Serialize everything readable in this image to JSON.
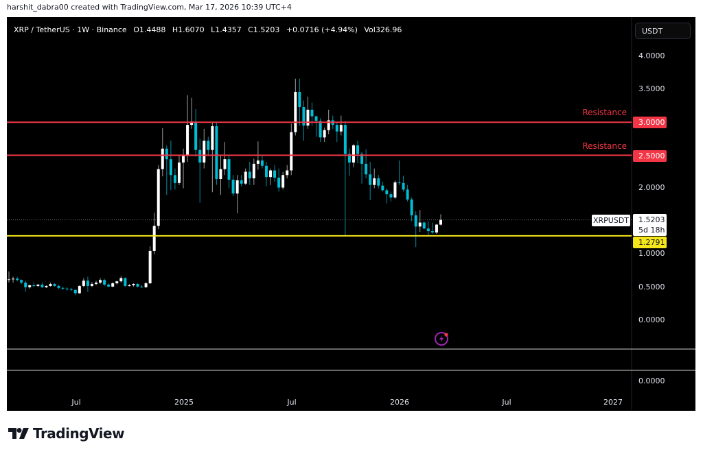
{
  "credit": "harshit_dabra00 created with TradingView.com, Mar 17, 2026 10:39 UTC+4",
  "legend": {
    "symbol": "XRP / TetherUS · 1W · Binance",
    "open": "O1.4488",
    "high": "H1.6070",
    "low": "L1.4357",
    "close": "C1.5203",
    "change": "+0.0716 (+4.94%)",
    "volume": "Vol326.96"
  },
  "currency_button": "USDT",
  "brand": "TradingView",
  "icons": {
    "alert": "lightning-icon",
    "logo": "tradingview-logo"
  },
  "colors": {
    "up": "#ffffff",
    "down": "#00bcd4",
    "resistance": "#f23645",
    "support": "#f5e61b",
    "background": "#000000"
  },
  "annotations": {
    "resistance_1": {
      "label": "Resistance",
      "price": "3.0000",
      "value": 3.0
    },
    "resistance_2": {
      "label": "Resistance",
      "price": "2.5000",
      "value": 2.5
    },
    "support": {
      "price": "1.2791",
      "value": 1.2791
    },
    "current": {
      "symbol": "XRPUSDT",
      "price": "1.5203",
      "countdown": "5d 18h",
      "value": 1.5203
    }
  },
  "lower_pane_value": "0.0000",
  "chart_data": {
    "type": "candlestick",
    "interval": "1W",
    "ylim": [
      0,
      4
    ],
    "y_ticks": [
      "4.0000",
      "3.5000",
      "2.0000",
      "1.0000",
      "0.5000",
      "0.0000"
    ],
    "y_tick_values": [
      4,
      3.5,
      2,
      1,
      0.5,
      0
    ],
    "x_ticks": [
      "Jul",
      "2025",
      "Jul",
      "2026",
      "Jul",
      "2027"
    ],
    "x_tick_dates": [
      "2024-07-01",
      "2025-01-01",
      "2025-07-01",
      "2026-01-01",
      "2026-07-01",
      "2027-01-01"
    ],
    "grid": false,
    "columns": [
      "date",
      "open",
      "high",
      "low",
      "close"
    ],
    "ohlc": [
      [
        "2024-03-18",
        0.61,
        0.74,
        0.57,
        0.62
      ],
      [
        "2024-03-25",
        0.62,
        0.66,
        0.57,
        0.63
      ],
      [
        "2024-04-01",
        0.63,
        0.66,
        0.59,
        0.61
      ],
      [
        "2024-04-08",
        0.61,
        0.62,
        0.55,
        0.57
      ],
      [
        "2024-04-15",
        0.57,
        0.6,
        0.43,
        0.5
      ],
      [
        "2024-04-22",
        0.5,
        0.54,
        0.48,
        0.53
      ],
      [
        "2024-04-29",
        0.53,
        0.57,
        0.5,
        0.52
      ],
      [
        "2024-05-06",
        0.52,
        0.55,
        0.5,
        0.54
      ],
      [
        "2024-05-13",
        0.54,
        0.57,
        0.49,
        0.5
      ],
      [
        "2024-05-20",
        0.5,
        0.53,
        0.49,
        0.52
      ],
      [
        "2024-05-27",
        0.52,
        0.57,
        0.51,
        0.55
      ],
      [
        "2024-06-03",
        0.55,
        0.56,
        0.51,
        0.52
      ],
      [
        "2024-06-10",
        0.52,
        0.54,
        0.47,
        0.49
      ],
      [
        "2024-06-17",
        0.49,
        0.51,
        0.46,
        0.48
      ],
      [
        "2024-06-24",
        0.48,
        0.5,
        0.45,
        0.47
      ],
      [
        "2024-07-01",
        0.47,
        0.49,
        0.44,
        0.46
      ],
      [
        "2024-07-08",
        0.46,
        0.47,
        0.38,
        0.41
      ],
      [
        "2024-07-15",
        0.41,
        0.53,
        0.4,
        0.52
      ],
      [
        "2024-07-22",
        0.52,
        0.64,
        0.5,
        0.6
      ],
      [
        "2024-07-29",
        0.6,
        0.66,
        0.43,
        0.52
      ],
      [
        "2024-08-05",
        0.52,
        0.58,
        0.5,
        0.55
      ],
      [
        "2024-08-12",
        0.55,
        0.6,
        0.53,
        0.57
      ],
      [
        "2024-08-19",
        0.57,
        0.64,
        0.55,
        0.61
      ],
      [
        "2024-08-26",
        0.61,
        0.63,
        0.52,
        0.54
      ],
      [
        "2024-09-02",
        0.54,
        0.56,
        0.5,
        0.51
      ],
      [
        "2024-09-09",
        0.51,
        0.58,
        0.5,
        0.56
      ],
      [
        "2024-09-16",
        0.56,
        0.6,
        0.54,
        0.59
      ],
      [
        "2024-09-23",
        0.59,
        0.67,
        0.57,
        0.64
      ],
      [
        "2024-09-30",
        0.64,
        0.65,
        0.51,
        0.52
      ],
      [
        "2024-10-07",
        0.52,
        0.55,
        0.51,
        0.53
      ],
      [
        "2024-10-14",
        0.53,
        0.56,
        0.51,
        0.55
      ],
      [
        "2024-10-21",
        0.55,
        0.56,
        0.5,
        0.51
      ],
      [
        "2024-10-28",
        0.51,
        0.53,
        0.49,
        0.5
      ],
      [
        "2024-11-04",
        0.5,
        0.58,
        0.49,
        0.56
      ],
      [
        "2024-11-11",
        0.56,
        1.12,
        0.55,
        1.05
      ],
      [
        "2024-11-18",
        1.05,
        1.63,
        1.0,
        1.43
      ],
      [
        "2024-11-25",
        1.43,
        2.35,
        1.38,
        2.29
      ],
      [
        "2024-12-02",
        2.29,
        2.91,
        2.18,
        2.6
      ],
      [
        "2024-12-09",
        2.6,
        2.65,
        1.9,
        2.44
      ],
      [
        "2024-12-16",
        2.44,
        2.72,
        1.97,
        2.2
      ],
      [
        "2024-12-23",
        2.2,
        2.3,
        1.98,
        2.08
      ],
      [
        "2024-12-30",
        2.08,
        2.5,
        2.05,
        2.39
      ],
      [
        "2025-01-06",
        2.39,
        2.6,
        2.0,
        2.49
      ],
      [
        "2025-01-13",
        2.49,
        3.41,
        2.4,
        2.96
      ],
      [
        "2025-01-20",
        2.96,
        3.37,
        2.9,
        3.01
      ],
      [
        "2025-01-27",
        3.01,
        3.2,
        2.48,
        2.58
      ],
      [
        "2025-02-03",
        2.58,
        2.75,
        1.78,
        2.39
      ],
      [
        "2025-02-10",
        2.39,
        2.9,
        2.3,
        2.72
      ],
      [
        "2025-02-17",
        2.72,
        2.78,
        2.5,
        2.58
      ],
      [
        "2025-02-24",
        2.58,
        3.0,
        1.94,
        2.94
      ],
      [
        "2025-03-03",
        2.94,
        3.0,
        2.05,
        2.14
      ],
      [
        "2025-03-10",
        2.14,
        2.5,
        1.9,
        2.29
      ],
      [
        "2025-03-17",
        2.29,
        2.7,
        2.2,
        2.44
      ],
      [
        "2025-03-24",
        2.44,
        2.5,
        2.0,
        2.13
      ],
      [
        "2025-03-31",
        2.13,
        2.2,
        1.88,
        1.92
      ],
      [
        "2025-04-07",
        1.92,
        2.2,
        1.62,
        2.12
      ],
      [
        "2025-04-14",
        2.12,
        2.2,
        2.03,
        2.07
      ],
      [
        "2025-04-21",
        2.07,
        2.3,
        2.05,
        2.25
      ],
      [
        "2025-04-28",
        2.25,
        2.4,
        2.05,
        2.15
      ],
      [
        "2025-05-05",
        2.15,
        2.45,
        2.05,
        2.37
      ],
      [
        "2025-05-12",
        2.37,
        2.71,
        2.28,
        2.42
      ],
      [
        "2025-05-19",
        2.42,
        2.5,
        2.3,
        2.34
      ],
      [
        "2025-05-26",
        2.34,
        2.4,
        2.03,
        2.17
      ],
      [
        "2025-06-02",
        2.17,
        2.3,
        2.05,
        2.27
      ],
      [
        "2025-06-09",
        2.27,
        2.35,
        2.1,
        2.16
      ],
      [
        "2025-06-16",
        2.16,
        2.3,
        1.95,
        2.01
      ],
      [
        "2025-06-23",
        2.01,
        2.25,
        1.98,
        2.2
      ],
      [
        "2025-06-30",
        2.2,
        2.35,
        2.15,
        2.27
      ],
      [
        "2025-07-07",
        2.27,
        2.98,
        2.2,
        2.85
      ],
      [
        "2025-07-14",
        2.85,
        3.66,
        2.8,
        3.46
      ],
      [
        "2025-07-21",
        3.46,
        3.66,
        2.95,
        3.23
      ],
      [
        "2025-07-28",
        3.23,
        3.33,
        2.72,
        2.95
      ],
      [
        "2025-08-04",
        2.95,
        3.39,
        2.9,
        3.19
      ],
      [
        "2025-08-11",
        3.19,
        3.3,
        2.95,
        3.09
      ],
      [
        "2025-08-18",
        3.09,
        3.1,
        2.78,
        3.02
      ],
      [
        "2025-08-25",
        3.02,
        3.06,
        2.7,
        2.77
      ],
      [
        "2025-09-01",
        2.77,
        2.92,
        2.7,
        2.88
      ],
      [
        "2025-09-08",
        2.88,
        3.19,
        2.82,
        3.03
      ],
      [
        "2025-09-15",
        3.03,
        3.1,
        2.9,
        2.96
      ],
      [
        "2025-09-22",
        2.96,
        3.0,
        2.7,
        2.86
      ],
      [
        "2025-09-29",
        2.86,
        3.1,
        2.8,
        2.96
      ],
      [
        "2025-10-06",
        2.96,
        3.02,
        1.27,
        2.52
      ],
      [
        "2025-10-13",
        2.52,
        2.6,
        2.19,
        2.39
      ],
      [
        "2025-10-20",
        2.39,
        2.67,
        2.32,
        2.65
      ],
      [
        "2025-10-27",
        2.65,
        2.72,
        2.38,
        2.52
      ],
      [
        "2025-11-03",
        2.52,
        2.55,
        2.07,
        2.37
      ],
      [
        "2025-11-10",
        2.37,
        2.59,
        2.15,
        2.21
      ],
      [
        "2025-11-17",
        2.21,
        2.4,
        1.82,
        2.05
      ],
      [
        "2025-11-24",
        2.05,
        2.3,
        2.0,
        2.15
      ],
      [
        "2025-12-01",
        2.15,
        2.2,
        2.0,
        2.04
      ],
      [
        "2025-12-08",
        2.04,
        2.1,
        1.95,
        1.97
      ],
      [
        "2025-12-15",
        1.97,
        2.0,
        1.77,
        1.91
      ],
      [
        "2025-12-22",
        1.91,
        1.95,
        1.8,
        1.86
      ],
      [
        "2025-12-29",
        1.86,
        2.12,
        1.84,
        2.09
      ],
      [
        "2026-01-05",
        2.09,
        2.42,
        2.05,
        2.08
      ],
      [
        "2026-01-12",
        2.08,
        2.19,
        1.95,
        1.98
      ],
      [
        "2026-01-19",
        1.98,
        2.05,
        1.8,
        1.83
      ],
      [
        "2026-01-26",
        1.83,
        1.86,
        1.5,
        1.59
      ],
      [
        "2026-02-02",
        1.59,
        1.65,
        1.11,
        1.42
      ],
      [
        "2026-02-09",
        1.42,
        1.67,
        1.34,
        1.48
      ],
      [
        "2026-02-16",
        1.48,
        1.5,
        1.38,
        1.39
      ],
      [
        "2026-02-23",
        1.39,
        1.5,
        1.27,
        1.35
      ],
      [
        "2026-03-02",
        1.35,
        1.48,
        1.31,
        1.33
      ],
      [
        "2026-03-09",
        1.33,
        1.46,
        1.31,
        1.4488
      ],
      [
        "2026-03-16",
        1.4488,
        1.607,
        1.4357,
        1.5203
      ]
    ]
  }
}
